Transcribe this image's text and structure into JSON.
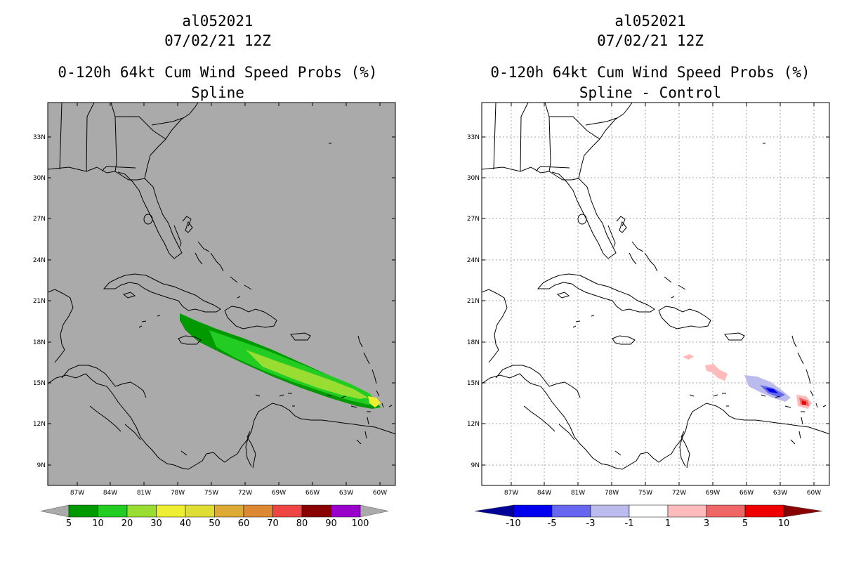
{
  "left_panel": {
    "storm_id": "al052021",
    "datetime": "07/02/21 12Z",
    "product": "0-120h 64kt Cum Wind Speed Probs (%)",
    "subtitle": "Spline",
    "colorbar": {
      "labels": [
        "5",
        "10",
        "20",
        "30",
        "40",
        "50",
        "60",
        "70",
        "80",
        "90",
        "100"
      ],
      "colors": [
        "#009900",
        "#22cc22",
        "#99dd33",
        "#eeee33",
        "#dddd33",
        "#ddaa33",
        "#dd8833",
        "#ee4444",
        "#880000",
        "#9900cc"
      ],
      "under_color": "#aaaaaa",
      "over_color": "#aaaaaa"
    }
  },
  "right_panel": {
    "storm_id": "al052021",
    "datetime": "07/02/21 12Z",
    "product": "0-120h 64kt Cum Wind Speed Probs (%)",
    "subtitle": "Spline - Control",
    "colorbar": {
      "labels": [
        "-10",
        "-5",
        "-3",
        "-1",
        "1",
        "3",
        "5",
        "10"
      ],
      "colors": [
        "#0000ee",
        "#6666ee",
        "#bbbbee",
        "#ffffff",
        "#ffbbbb",
        "#ee6666",
        "#ee0000"
      ],
      "under_color": "#000099",
      "over_color": "#880000"
    }
  },
  "lat_labels": [
    "33N",
    "30N",
    "27N",
    "24N",
    "21N",
    "18N",
    "15N",
    "12N",
    "9N"
  ],
  "lon_labels": [
    "87W",
    "84W",
    "81W",
    "78W",
    "75W",
    "72W",
    "69W",
    "66W",
    "63W",
    "60W"
  ],
  "colors": {
    "land_fill_left": "#aaaaaa",
    "grid": "#aaaaaa",
    "coast": "#000000"
  }
}
